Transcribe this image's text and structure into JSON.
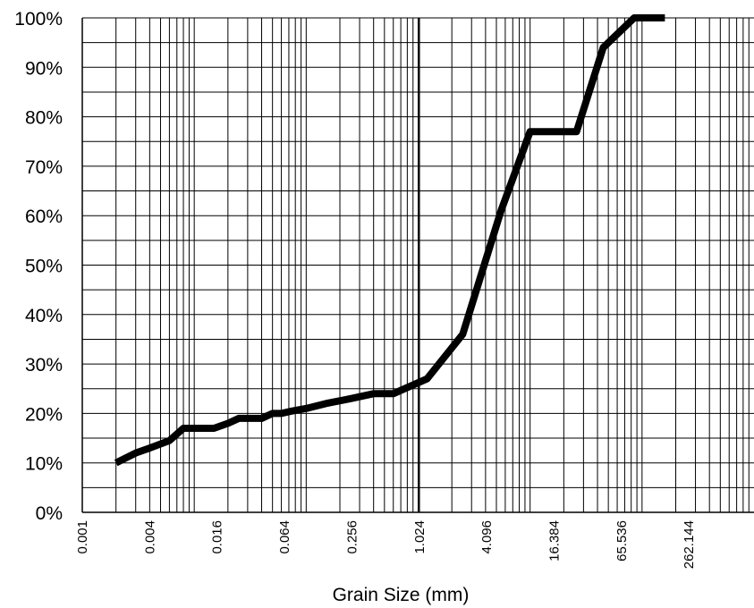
{
  "chart_data": {
    "type": "line",
    "xlabel": "Grain Size (mm)",
    "ylabel": "",
    "x_scale": "log",
    "xlim": [
      0.001,
      1000
    ],
    "ylim": [
      0,
      100
    ],
    "grid": true,
    "y_ticks": [
      "0%",
      "10%",
      "20%",
      "30%",
      "40%",
      "50%",
      "60%",
      "70%",
      "80%",
      "90%",
      "100%"
    ],
    "y_tick_values": [
      0,
      10,
      20,
      30,
      40,
      50,
      60,
      70,
      80,
      90,
      100
    ],
    "x_ticks": [
      "0.001",
      "0.004",
      "0.016",
      "0.064",
      "0.256",
      "1.024",
      "4.096",
      "16.384",
      "65.536",
      "262.144"
    ],
    "x_tick_values": [
      0.001,
      0.004,
      0.016,
      0.064,
      0.256,
      1.024,
      4.096,
      16.384,
      65.536,
      262.144
    ],
    "series": [
      {
        "color": "#000000",
        "x": [
          0.002,
          0.003,
          0.004,
          0.006,
          0.008,
          0.01,
          0.015,
          0.02,
          0.025,
          0.03,
          0.04,
          0.05,
          0.06,
          0.075,
          0.1,
          0.15,
          0.25,
          0.4,
          0.6,
          1.2,
          2.5,
          5.5,
          10,
          14,
          26,
          45,
          85,
          160
        ],
        "y": [
          10,
          12,
          13,
          14.5,
          17,
          17,
          17,
          18,
          19,
          19,
          19,
          20,
          20,
          20.5,
          21,
          22,
          23,
          24,
          24,
          27,
          36,
          61,
          77,
          77,
          77,
          94,
          100,
          100
        ]
      }
    ]
  }
}
